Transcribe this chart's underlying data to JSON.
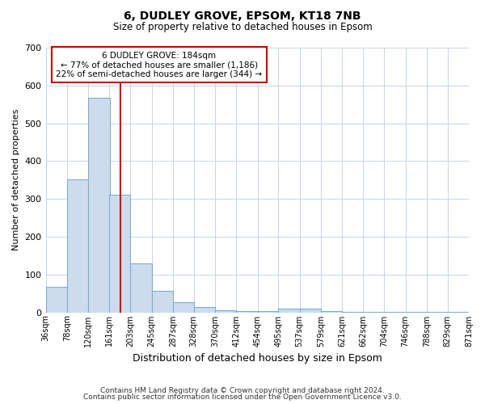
{
  "title1": "6, DUDLEY GROVE, EPSOM, KT18 7NB",
  "title2": "Size of property relative to detached houses in Epsom",
  "xlabel": "Distribution of detached houses by size in Epsom",
  "ylabel": "Number of detached properties",
  "footnote1": "Contains HM Land Registry data © Crown copyright and database right 2024.",
  "footnote2": "Contains public sector information licensed under the Open Government Licence v3.0.",
  "annotation_line1": "6 DUDLEY GROVE: 184sqm",
  "annotation_line2": "← 77% of detached houses are smaller (1,186)",
  "annotation_line3": "22% of semi-detached houses are larger (344) →",
  "property_size": 184,
  "bin_edges": [
    36,
    78,
    120,
    161,
    203,
    245,
    287,
    328,
    370,
    412,
    454,
    495,
    537,
    579,
    621,
    662,
    704,
    746,
    788,
    829,
    871
  ],
  "bar_heights": [
    68,
    352,
    567,
    312,
    130,
    57,
    27,
    13,
    6,
    4,
    3,
    10,
    10,
    4,
    2,
    1,
    1,
    1,
    1,
    1
  ],
  "bar_color": "#cddcec",
  "bar_edge_color": "#7aadd4",
  "vline_color": "#cc0000",
  "annotation_box_edge": "#cc0000",
  "ylim": [
    0,
    700
  ],
  "yticks": [
    0,
    100,
    200,
    300,
    400,
    500,
    600,
    700
  ],
  "bg_color": "#ffffff",
  "grid_color": "#c8d4e3",
  "tick_labels": [
    "36sqm",
    "78sqm",
    "120sqm",
    "161sqm",
    "203sqm",
    "245sqm",
    "287sqm",
    "328sqm",
    "370sqm",
    "412sqm",
    "454sqm",
    "495sqm",
    "537sqm",
    "579sqm",
    "621sqm",
    "662sqm",
    "704sqm",
    "746sqm",
    "788sqm",
    "829sqm",
    "871sqm"
  ]
}
